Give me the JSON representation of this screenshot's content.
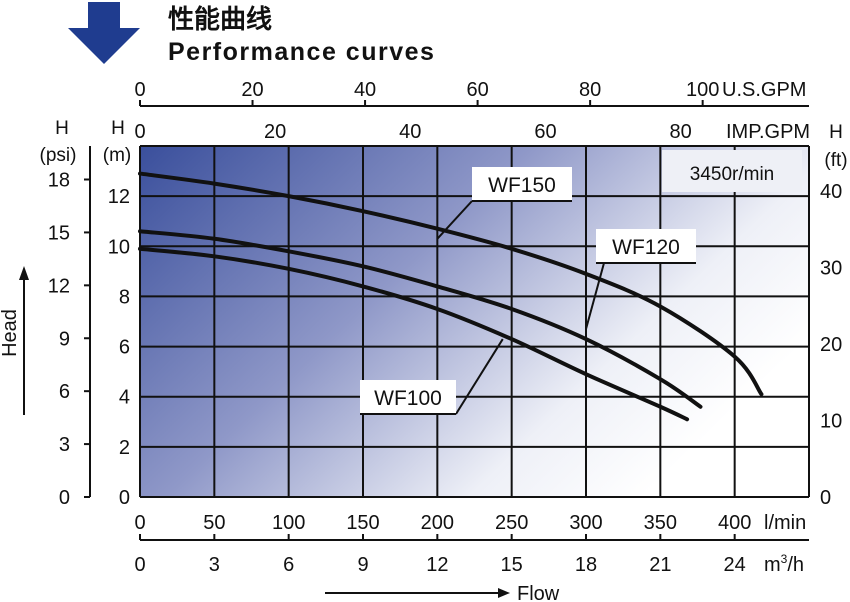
{
  "header": {
    "title_cn": "性能曲线",
    "title_en": "Performance curves"
  },
  "colors": {
    "arrow": "#1f3c8f",
    "grad_dark": "#3a4f9c",
    "grad_light": "#ffffff",
    "grid": "#111111",
    "curve": "#111111"
  },
  "chart_data": {
    "type": "line",
    "title": "Performance curves",
    "speed_label": "3450r/min",
    "x_axes": {
      "lpm": {
        "label": "l/min",
        "range": [
          0,
          450
        ],
        "ticks": [
          0,
          50,
          100,
          150,
          200,
          250,
          300,
          350,
          400
        ]
      },
      "m3h": {
        "label_main": "m",
        "label_sup": "3",
        "label_tail": "/h",
        "range": [
          0,
          27
        ],
        "ticks": [
          0,
          3,
          6,
          9,
          12,
          15,
          18,
          21,
          24
        ]
      },
      "usgpm": {
        "label": "U.S.GPM",
        "range": [
          0,
          118.9
        ],
        "ticks": [
          0,
          20,
          40,
          60,
          80,
          100
        ]
      },
      "impgpm": {
        "label": "IMP.GPM",
        "range": [
          0,
          99
        ],
        "ticks": [
          0,
          20,
          40,
          60,
          80
        ]
      },
      "flow_label": "Flow"
    },
    "y_axes": {
      "m": {
        "label": "H",
        "unit": "(m)",
        "range": [
          0,
          14
        ],
        "ticks": [
          0,
          2,
          4,
          6,
          8,
          10,
          12
        ]
      },
      "psi": {
        "label": "H",
        "unit": "(psi)",
        "range": [
          0,
          19.9
        ],
        "ticks": [
          0,
          3,
          6,
          9,
          12,
          15,
          18
        ]
      },
      "ft": {
        "label": "H",
        "unit": "(ft)",
        "range": [
          0,
          45.9
        ],
        "ticks": [
          0,
          10,
          20,
          30,
          40
        ]
      },
      "head_label": "Head"
    },
    "series": [
      {
        "name": "WF150",
        "points": [
          [
            0,
            12.9
          ],
          [
            50,
            12.5
          ],
          [
            100,
            12.0
          ],
          [
            150,
            11.4
          ],
          [
            200,
            10.7
          ],
          [
            250,
            9.9
          ],
          [
            300,
            8.9
          ],
          [
            350,
            7.6
          ],
          [
            400,
            5.6
          ],
          [
            418,
            4.1
          ]
        ]
      },
      {
        "name": "WF120",
        "points": [
          [
            0,
            10.6
          ],
          [
            50,
            10.3
          ],
          [
            100,
            9.8
          ],
          [
            150,
            9.2
          ],
          [
            200,
            8.4
          ],
          [
            250,
            7.5
          ],
          [
            300,
            6.3
          ],
          [
            350,
            4.7
          ],
          [
            377,
            3.6
          ]
        ]
      },
      {
        "name": "WF100",
        "points": [
          [
            0,
            9.9
          ],
          [
            50,
            9.6
          ],
          [
            100,
            9.1
          ],
          [
            150,
            8.4
          ],
          [
            200,
            7.5
          ],
          [
            250,
            6.3
          ],
          [
            300,
            4.9
          ],
          [
            350,
            3.6
          ],
          [
            368,
            3.1
          ]
        ]
      }
    ],
    "labels": [
      {
        "series": "WF150",
        "text": "WF150",
        "anchor_lpm": 200,
        "anchor_head": 10.3
      },
      {
        "series": "WF120",
        "text": "WF120",
        "anchor_lpm": 300,
        "anchor_head": 6.7
      },
      {
        "series": "WF100",
        "text": "WF100",
        "anchor_lpm": 244,
        "anchor_head": 6.3
      }
    ]
  }
}
